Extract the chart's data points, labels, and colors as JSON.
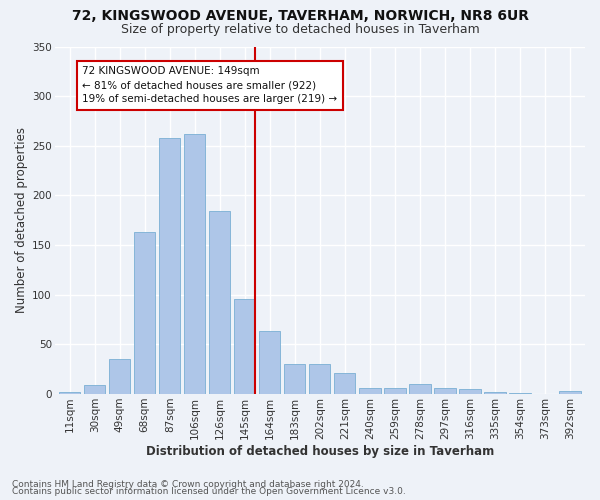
{
  "title": "72, KINGSWOOD AVENUE, TAVERHAM, NORWICH, NR8 6UR",
  "subtitle": "Size of property relative to detached houses in Taverham",
  "xlabel": "Distribution of detached houses by size in Taverham",
  "ylabel": "Number of detached properties",
  "footer1": "Contains HM Land Registry data © Crown copyright and database right 2024.",
  "footer2": "Contains public sector information licensed under the Open Government Licence v3.0.",
  "bar_labels": [
    "11sqm",
    "30sqm",
    "49sqm",
    "68sqm",
    "87sqm",
    "106sqm",
    "126sqm",
    "145sqm",
    "164sqm",
    "183sqm",
    "202sqm",
    "221sqm",
    "240sqm",
    "259sqm",
    "278sqm",
    "297sqm",
    "316sqm",
    "335sqm",
    "354sqm",
    "373sqm",
    "392sqm"
  ],
  "bar_values": [
    2,
    9,
    35,
    163,
    258,
    262,
    184,
    96,
    63,
    30,
    30,
    21,
    6,
    6,
    10,
    6,
    5,
    2,
    1,
    0,
    3
  ],
  "bar_color": "#aec6e8",
  "bar_edge_color": "#7aafd4",
  "vline_x_index": 7,
  "vline_color": "#cc0000",
  "annotation_line1": "72 KINGSWOOD AVENUE: 149sqm",
  "annotation_line2": "← 81% of detached houses are smaller (922)",
  "annotation_line3": "19% of semi-detached houses are larger (219) →",
  "annotation_box_color": "#cc0000",
  "ylim": [
    0,
    350
  ],
  "yticks": [
    0,
    50,
    100,
    150,
    200,
    250,
    300,
    350
  ],
  "bg_color": "#eef2f8",
  "grid_color": "#ffffff",
  "title_fontsize": 10,
  "subtitle_fontsize": 9,
  "axis_label_fontsize": 8.5,
  "tick_fontsize": 7.5,
  "footer_fontsize": 6.5
}
